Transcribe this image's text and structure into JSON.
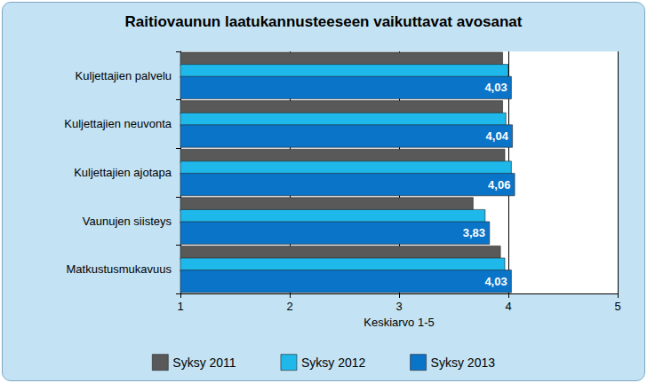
{
  "chart_data": {
    "type": "bar",
    "orientation": "horizontal",
    "title": "Raitiovaunun laatukannusteeseen vaikuttavat avosanat",
    "x_label": "Keskiarvo 1-5",
    "categories": [
      "Kuljettajien palvelu",
      "Kuljettajien neuvonta",
      "Kuljettajien ajotapa",
      "Vaunujen siisteys",
      "Matkustusmukavuus"
    ],
    "series": [
      {
        "name": "Syksy 2011",
        "color": "#595959",
        "values": [
          3.95,
          3.95,
          3.97,
          3.68,
          3.93
        ]
      },
      {
        "name": "Syksy 2012",
        "color": "#1fb8ea",
        "values": [
          4.0,
          3.98,
          4.03,
          3.79,
          3.97
        ]
      },
      {
        "name": "Syksy 2013",
        "color": "#0a74c8",
        "values": [
          4.03,
          4.04,
          4.06,
          3.83,
          4.03
        ],
        "data_labels": true,
        "value_labels": [
          "4,03",
          "4,04",
          "4,06",
          "3,83",
          "4,03"
        ]
      }
    ],
    "xlim": [
      1,
      5
    ],
    "xticks": [
      1,
      2,
      3,
      4,
      5
    ],
    "grid": true,
    "legend": "bottom"
  }
}
